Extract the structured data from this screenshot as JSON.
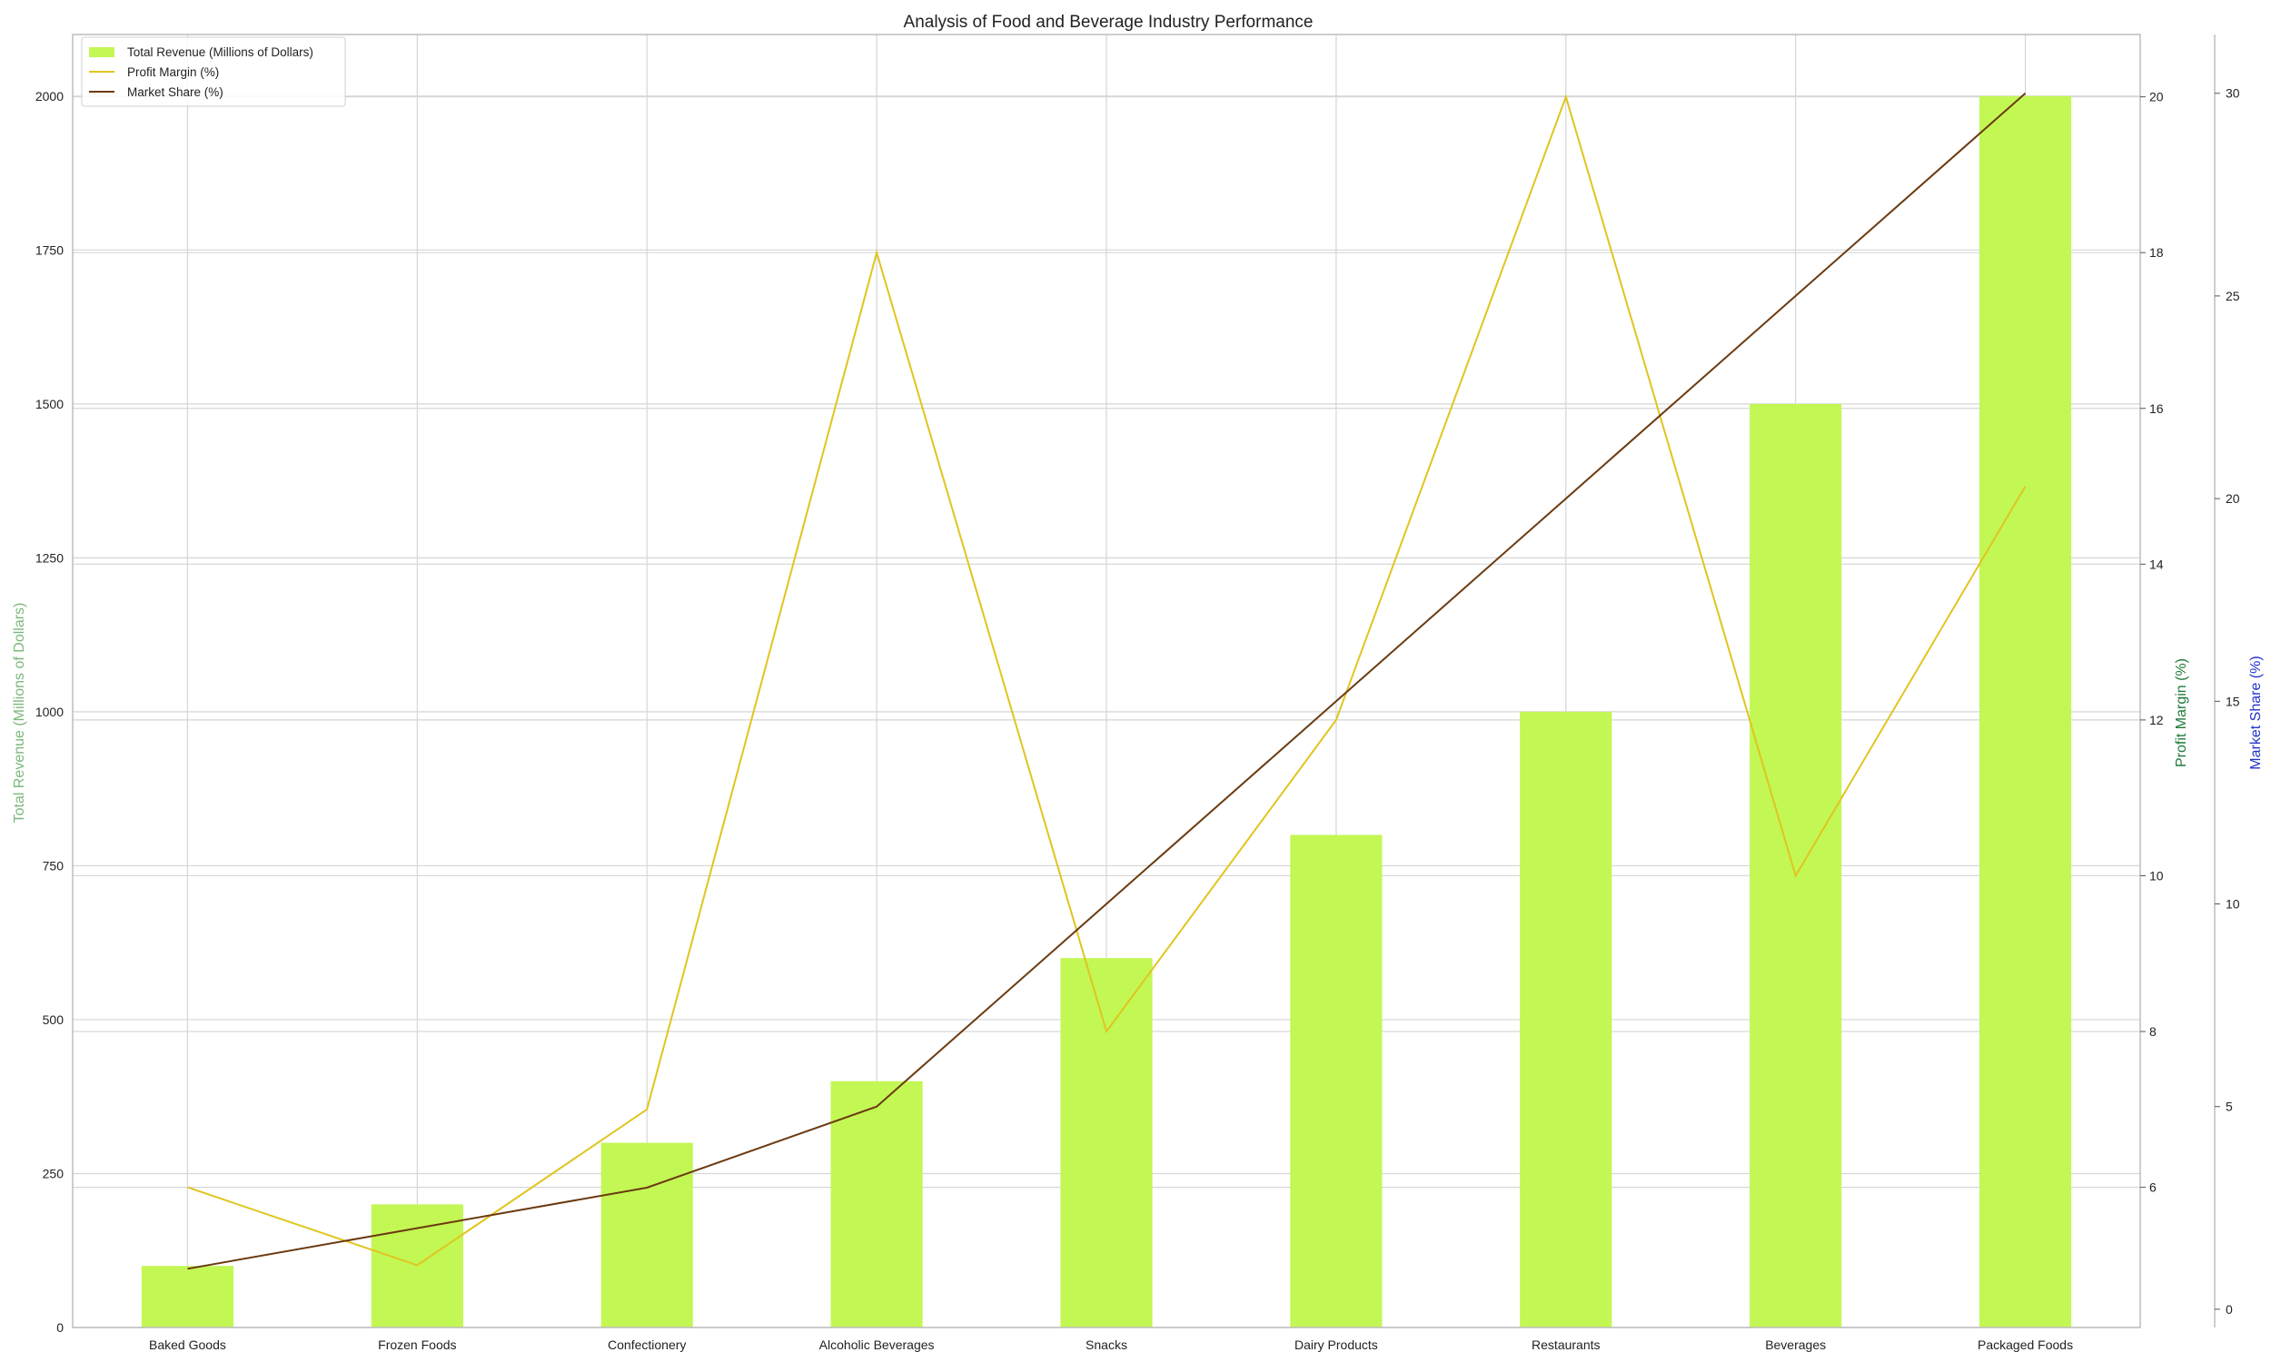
{
  "chart_data": {
    "type": "bar",
    "title": "Analysis of Food and Beverage Industry Performance",
    "categories": [
      "Baked Goods",
      "Frozen Foods",
      "Confectionery",
      "Alcoholic Beverages",
      "Snacks",
      "Dairy Products",
      "Restaurants",
      "Beverages",
      "Packaged Foods"
    ],
    "series": [
      {
        "name": "Total Revenue (Millions of Dollars)",
        "type": "bar",
        "axis": "left",
        "color": "#c3f754",
        "values": [
          100,
          200,
          300,
          400,
          600,
          800,
          1000,
          1500,
          2000
        ]
      },
      {
        "name": "Profit Margin (%)",
        "type": "line",
        "axis": "right",
        "color": "#e0c51f",
        "values": [
          6,
          5,
          7,
          18,
          8,
          12,
          20,
          10,
          15
        ]
      },
      {
        "name": "Market Share (%)",
        "type": "line",
        "axis": "right2",
        "color": "#6b3a10",
        "values": [
          1,
          2,
          3,
          5,
          10,
          15,
          20,
          25,
          30
        ]
      }
    ],
    "axes": {
      "left": {
        "label": "Total Revenue (Millions of Dollars)",
        "label_color": "#7ab87a",
        "ylim": [
          0,
          2100
        ],
        "ticks": [
          0,
          250,
          500,
          750,
          1000,
          1250,
          1500,
          1750,
          2000
        ]
      },
      "right": {
        "label": "Profit Margin (%)",
        "label_color": "#1f7a3a",
        "ylim": [
          4.2,
          20.8
        ],
        "ticks": [
          6,
          8,
          10,
          12,
          14,
          16,
          18,
          20
        ]
      },
      "right2": {
        "label": "Market Share (%)",
        "label_color": "#2233cc",
        "ylim": [
          -0.45,
          31.45
        ],
        "ticks": [
          0,
          5,
          10,
          15,
          20,
          25,
          30
        ]
      }
    },
    "grid": true,
    "legend_position": "top-left"
  }
}
